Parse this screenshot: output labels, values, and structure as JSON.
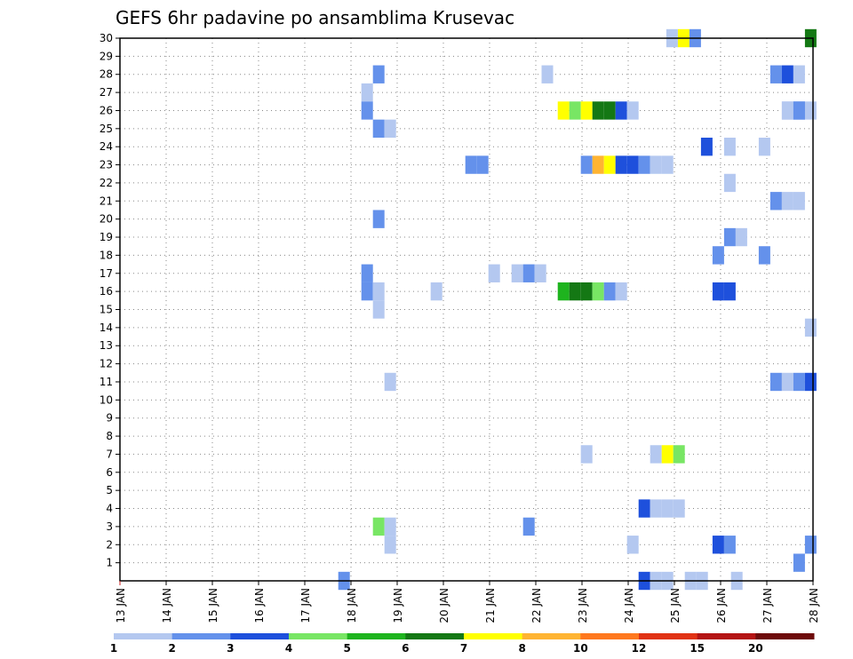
{
  "chart_data": {
    "type": "heatmap",
    "title": "GEFS 6hr padavine po ansamblima Krusevac",
    "x_tick_labels": [
      "13 JAN",
      "14 JAN",
      "15 JAN",
      "16 JAN",
      "17 JAN",
      "18 JAN",
      "19 JAN",
      "20 JAN",
      "21 JAN",
      "22 JAN",
      "23 JAN",
      "24 JAN",
      "25 JAN",
      "26 JAN",
      "27 JAN",
      "28 JAN"
    ],
    "y_tick_labels": [
      "1",
      "2",
      "3",
      "4",
      "5",
      "6",
      "7",
      "8",
      "9",
      "10",
      "11",
      "12",
      "13",
      "14",
      "15",
      "16",
      "17",
      "18",
      "19",
      "20",
      "21",
      "22",
      "23",
      "24",
      "25",
      "26",
      "27",
      "28",
      "29",
      "30"
    ],
    "xlim": [
      0,
      15
    ],
    "ylim": [
      0,
      30
    ],
    "grid": true,
    "colorbar": {
      "levels": [
        "1",
        "2",
        "3",
        "4",
        "5",
        "6",
        "7",
        "8",
        "10",
        "12",
        "15",
        "20"
      ],
      "colors": [
        "#b4c8f0",
        "#6491eb",
        "#1e50dc",
        "#78e664",
        "#1eb41e",
        "#147814",
        "#ffff00",
        "#ffb432",
        "#ff781e",
        "#e13214",
        "#b41414",
        "#6e0a0a"
      ]
    },
    "cells": [
      {
        "member": 30,
        "time": 11.95,
        "bin": 0
      },
      {
        "member": 30,
        "time": 12.2,
        "bin": 6
      },
      {
        "member": 30,
        "time": 12.45,
        "bin": 1
      },
      {
        "member": 30,
        "time": 14.95,
        "bin": 5
      },
      {
        "member": 28,
        "time": 5.6,
        "bin": 1
      },
      {
        "member": 28,
        "time": 9.25,
        "bin": 0
      },
      {
        "member": 28,
        "time": 14.2,
        "bin": 1
      },
      {
        "member": 28,
        "time": 14.45,
        "bin": 2
      },
      {
        "member": 28,
        "time": 14.7,
        "bin": 0
      },
      {
        "member": 27,
        "time": 5.35,
        "bin": 0
      },
      {
        "member": 26,
        "time": 5.35,
        "bin": 1
      },
      {
        "member": 26,
        "time": 9.6,
        "bin": 6
      },
      {
        "member": 26,
        "time": 9.85,
        "bin": 3
      },
      {
        "member": 26,
        "time": 10.1,
        "bin": 6
      },
      {
        "member": 26,
        "time": 10.35,
        "bin": 5
      },
      {
        "member": 26,
        "time": 10.6,
        "bin": 5
      },
      {
        "member": 26,
        "time": 10.85,
        "bin": 2
      },
      {
        "member": 26,
        "time": 11.1,
        "bin": 0
      },
      {
        "member": 26,
        "time": 14.45,
        "bin": 0
      },
      {
        "member": 26,
        "time": 14.7,
        "bin": 1
      },
      {
        "member": 26,
        "time": 14.95,
        "bin": 0
      },
      {
        "member": 26,
        "time": 14.45,
        "bin": 0
      },
      {
        "member": 26,
        "time": 14.7,
        "bin": 1
      },
      {
        "member": 25,
        "time": 5.6,
        "bin": 1
      },
      {
        "member": 25,
        "time": 5.85,
        "bin": 0
      },
      {
        "member": 24,
        "time": 12.7,
        "bin": 2
      },
      {
        "member": 24,
        "time": 13.2,
        "bin": 0
      },
      {
        "member": 24,
        "time": 13.95,
        "bin": 0
      },
      {
        "member": 23,
        "time": 7.6,
        "bin": 1
      },
      {
        "member": 23,
        "time": 7.85,
        "bin": 1
      },
      {
        "member": 23,
        "time": 10.1,
        "bin": 1
      },
      {
        "member": 23,
        "time": 10.35,
        "bin": 7
      },
      {
        "member": 23,
        "time": 10.6,
        "bin": 6
      },
      {
        "member": 23,
        "time": 10.85,
        "bin": 2
      },
      {
        "member": 23,
        "time": 11.1,
        "bin": 2
      },
      {
        "member": 23,
        "time": 11.35,
        "bin": 1
      },
      {
        "member": 23,
        "time": 11.6,
        "bin": 0
      },
      {
        "member": 23,
        "time": 11.85,
        "bin": 0
      },
      {
        "member": 22,
        "time": 13.2,
        "bin": 0
      },
      {
        "member": 21,
        "time": 14.2,
        "bin": 1
      },
      {
        "member": 21,
        "time": 14.45,
        "bin": 0
      },
      {
        "member": 21,
        "time": 14.7,
        "bin": 0
      },
      {
        "member": 20,
        "time": 5.6,
        "bin": 1
      },
      {
        "member": 19,
        "time": 13.2,
        "bin": 1
      },
      {
        "member": 19,
        "time": 13.45,
        "bin": 0
      },
      {
        "member": 18,
        "time": 12.95,
        "bin": 1
      },
      {
        "member": 18,
        "time": 13.95,
        "bin": 1
      },
      {
        "member": 17,
        "time": 5.35,
        "bin": 1
      },
      {
        "member": 17,
        "time": 8.1,
        "bin": 0
      },
      {
        "member": 17,
        "time": 8.6,
        "bin": 0
      },
      {
        "member": 17,
        "time": 8.85,
        "bin": 1
      },
      {
        "member": 17,
        "time": 9.1,
        "bin": 0
      },
      {
        "member": 16,
        "time": 5.35,
        "bin": 1
      },
      {
        "member": 16,
        "time": 5.6,
        "bin": 0
      },
      {
        "member": 16,
        "time": 6.85,
        "bin": 0
      },
      {
        "member": 16,
        "time": 9.6,
        "bin": 4
      },
      {
        "member": 16,
        "time": 9.85,
        "bin": 5
      },
      {
        "member": 16,
        "time": 10.1,
        "bin": 5
      },
      {
        "member": 16,
        "time": 10.35,
        "bin": 3
      },
      {
        "member": 16,
        "time": 10.6,
        "bin": 1
      },
      {
        "member": 16,
        "time": 10.85,
        "bin": 0
      },
      {
        "member": 16,
        "time": 12.95,
        "bin": 2
      },
      {
        "member": 16,
        "time": 13.2,
        "bin": 2
      },
      {
        "member": 15,
        "time": 5.6,
        "bin": 0
      },
      {
        "member": 14,
        "time": 14.95,
        "bin": 0
      },
      {
        "member": 11,
        "time": 5.85,
        "bin": 0
      },
      {
        "member": 11,
        "time": 14.2,
        "bin": 1
      },
      {
        "member": 11,
        "time": 14.45,
        "bin": 0
      },
      {
        "member": 11,
        "time": 14.7,
        "bin": 1
      },
      {
        "member": 11,
        "time": 14.95,
        "bin": 2
      },
      {
        "member": 7,
        "time": 10.1,
        "bin": 0
      },
      {
        "member": 7,
        "time": 11.6,
        "bin": 0
      },
      {
        "member": 7,
        "time": 11.85,
        "bin": 6
      },
      {
        "member": 7,
        "time": 12.1,
        "bin": 3
      },
      {
        "member": 4,
        "time": 11.35,
        "bin": 2
      },
      {
        "member": 4,
        "time": 11.6,
        "bin": 0
      },
      {
        "member": 4,
        "time": 11.85,
        "bin": 0
      },
      {
        "member": 4,
        "time": 12.1,
        "bin": 0
      },
      {
        "member": 3,
        "time": 5.6,
        "bin": 3
      },
      {
        "member": 3,
        "time": 5.85,
        "bin": 0
      },
      {
        "member": 3,
        "time": 8.85,
        "bin": 1
      },
      {
        "member": 2,
        "time": 5.85,
        "bin": 0
      },
      {
        "member": 2,
        "time": 11.1,
        "bin": 0
      },
      {
        "member": 2,
        "time": 12.95,
        "bin": 2
      },
      {
        "member": 2,
        "time": 13.2,
        "bin": 1
      },
      {
        "member": 2,
        "time": 14.95,
        "bin": 1
      },
      {
        "member": 1,
        "time": 14.7,
        "bin": 1
      },
      {
        "member": 0,
        "time": 4.85,
        "bin": 1
      },
      {
        "member": 0,
        "time": 11.35,
        "bin": 2
      },
      {
        "member": 0,
        "time": 11.6,
        "bin": 0
      },
      {
        "member": 0,
        "time": 11.85,
        "bin": 0
      },
      {
        "member": 0,
        "time": 12.35,
        "bin": 0
      },
      {
        "member": 0,
        "time": 12.6,
        "bin": 0
      },
      {
        "member": 0,
        "time": 13.35,
        "bin": 0
      }
    ]
  }
}
